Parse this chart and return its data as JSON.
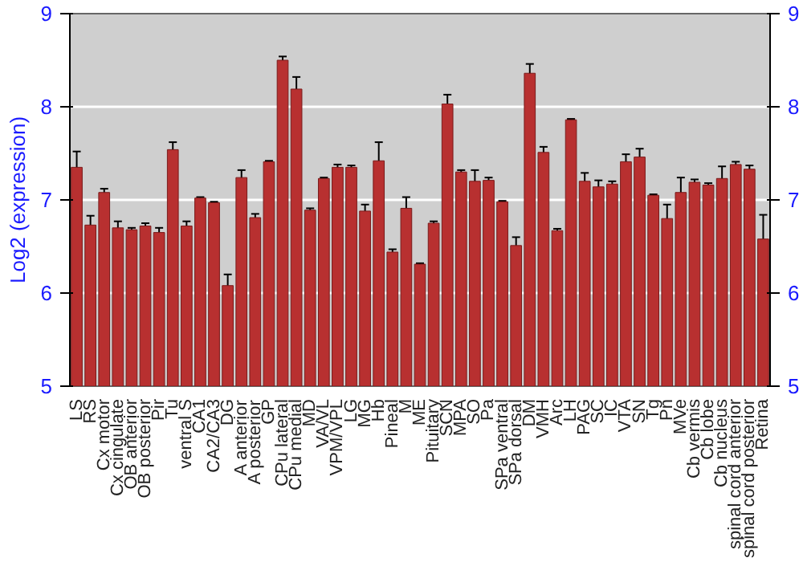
{
  "chart_data": {
    "type": "bar",
    "ylabel": "Log2 (expression)",
    "categories": [
      "LS",
      "RS",
      "Cx motor",
      "Cx cingulate",
      "OB anterior",
      "OB posterior",
      "Pir",
      "Tu",
      "ventral S",
      "CA1",
      "CA2/CA3",
      "DG",
      "A anterior",
      "A posterior",
      "GP",
      "CPu lateral",
      "CPu medial",
      "MD",
      "VA/VL",
      "VPM/VPL",
      "LG",
      "MG",
      "Hb",
      "Pineal",
      "M",
      "ME",
      "Pituitary",
      "SCN",
      "MPA",
      "SO",
      "Pa",
      "SPa ventral",
      "SPa dorsal",
      "DM",
      "VMH",
      "Arc",
      "LH",
      "PAG",
      "SC",
      "IC",
      "VTA",
      "SN",
      "Tg",
      "Pn",
      "MVe",
      "Cb vermis",
      "Cb lobe",
      "Cb nucleus",
      "spinal cord anterior",
      "spinal cord posterior",
      "Retina"
    ],
    "values": [
      7.35,
      6.73,
      7.08,
      6.7,
      6.68,
      6.72,
      6.65,
      7.54,
      6.72,
      7.02,
      6.97,
      6.08,
      7.24,
      6.81,
      7.41,
      8.5,
      8.19,
      6.89,
      7.23,
      7.35,
      7.35,
      6.88,
      7.42,
      6.44,
      6.91,
      6.31,
      6.75,
      8.03,
      7.3,
      7.2,
      7.21,
      6.98,
      6.51,
      8.36,
      7.51,
      6.67,
      7.86,
      7.2,
      7.14,
      7.17,
      7.41,
      7.46,
      7.05,
      6.8,
      7.08,
      7.19,
      7.16,
      7.23,
      7.38,
      7.33,
      6.58
    ],
    "errors": [
      0.17,
      0.1,
      0.04,
      0.07,
      0.02,
      0.03,
      0.05,
      0.08,
      0.05,
      0.01,
      0.01,
      0.12,
      0.08,
      0.04,
      0.01,
      0.04,
      0.13,
      0.02,
      0.01,
      0.03,
      0.02,
      0.07,
      0.2,
      0.03,
      0.12,
      0.01,
      0.02,
      0.1,
      0.02,
      0.12,
      0.03,
      0.01,
      0.09,
      0.1,
      0.06,
      0.02,
      0.01,
      0.09,
      0.07,
      0.03,
      0.08,
      0.09,
      0.01,
      0.15,
      0.16,
      0.03,
      0.02,
      0.13,
      0.03,
      0.04,
      0.26
    ],
    "color": "#b83030",
    "ylim": [
      5,
      9
    ],
    "yticks": [
      5,
      6,
      7,
      8,
      9
    ],
    "y2lim": [
      5,
      9
    ],
    "y2ticks": [
      5,
      6,
      7,
      8,
      9
    ],
    "grid": "y"
  }
}
